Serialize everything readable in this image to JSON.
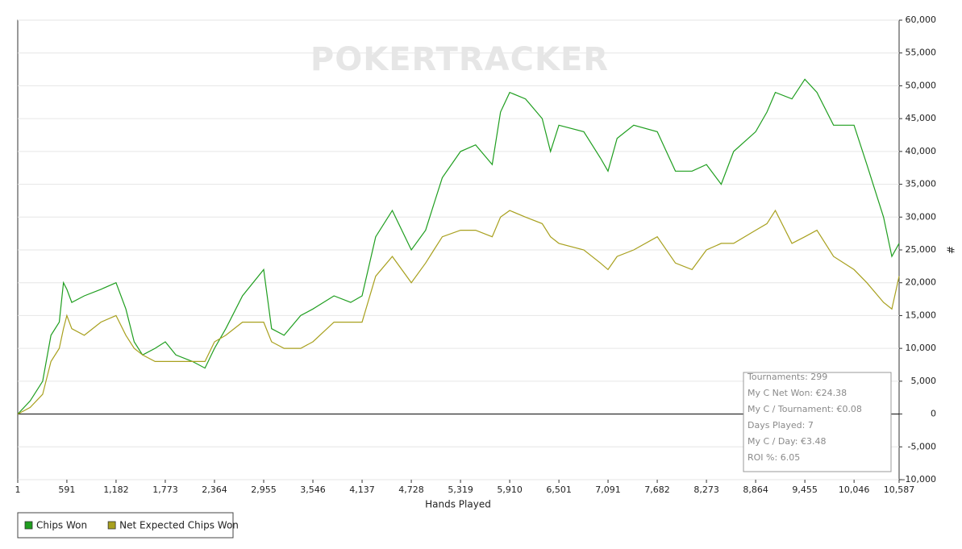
{
  "chart_data": {
    "type": "line",
    "watermark": "POKERTRACKER",
    "x_label": "Hands Played",
    "y_label": "#",
    "x": [
      1,
      150,
      300,
      400,
      500,
      550,
      591,
      650,
      800,
      1000,
      1182,
      1300,
      1400,
      1500,
      1650,
      1773,
      1900,
      2100,
      2250,
      2364,
      2500,
      2700,
      2955,
      3050,
      3200,
      3400,
      3546,
      3800,
      4000,
      4137,
      4300,
      4500,
      4728,
      4900,
      5000,
      5100,
      5319,
      5500,
      5700,
      5800,
      5910,
      6100,
      6300,
      6400,
      6501,
      6800,
      7000,
      7091,
      7200,
      7400,
      7682,
      7900,
      8100,
      8273,
      8450,
      8600,
      8864,
      9000,
      9100,
      9300,
      9455,
      9600,
      9800,
      10046,
      10200,
      10400,
      10500,
      10587
    ],
    "series": [
      {
        "name": "Chips Won",
        "color": "#1f9e1f",
        "values": [
          0,
          2000,
          5000,
          12000,
          14000,
          20000,
          19000,
          17000,
          18000,
          19000,
          20000,
          16000,
          11000,
          9000,
          10000,
          11000,
          9000,
          8000,
          7000,
          10000,
          13000,
          18000,
          22000,
          13000,
          12000,
          15000,
          16000,
          18000,
          17000,
          18000,
          27000,
          31000,
          25000,
          28000,
          32000,
          36000,
          40000,
          41000,
          38000,
          46000,
          49000,
          48000,
          45000,
          40000,
          44000,
          43000,
          39000,
          37000,
          42000,
          44000,
          43000,
          37000,
          37000,
          38000,
          35000,
          40000,
          43000,
          46000,
          49000,
          48000,
          51000,
          49000,
          44000,
          44000,
          38000,
          30000,
          24000,
          26000
        ]
      },
      {
        "name": "Net Expected Chips Won",
        "color": "#a8a01e",
        "values": [
          0,
          1000,
          3000,
          8000,
          10000,
          13000,
          15000,
          13000,
          12000,
          14000,
          15000,
          12000,
          10000,
          9000,
          8000,
          8000,
          8000,
          8000,
          8000,
          11000,
          12000,
          14000,
          14000,
          11000,
          10000,
          10000,
          11000,
          14000,
          14000,
          14000,
          21000,
          24000,
          20000,
          23000,
          25000,
          27000,
          28000,
          28000,
          27000,
          30000,
          31000,
          30000,
          29000,
          27000,
          26000,
          25000,
          23000,
          22000,
          24000,
          25000,
          27000,
          23000,
          22000,
          25000,
          26000,
          26000,
          28000,
          29000,
          31000,
          26000,
          27000,
          28000,
          24000,
          22000,
          20000,
          17000,
          16000,
          21000
        ]
      }
    ],
    "xlim": [
      1,
      10587
    ],
    "xticks": [
      1,
      {
        "value": 591,
        "label": "591"
      },
      {
        "value": 1182,
        "label": "1,182"
      },
      {
        "value": 1773,
        "label": "1,773"
      },
      {
        "value": 2364,
        "label": "2,364"
      },
      {
        "value": 2955,
        "label": "2,955"
      },
      {
        "value": 3546,
        "label": "3,546"
      },
      {
        "value": 4137,
        "label": "4,137"
      },
      {
        "value": 4728,
        "label": "4,728"
      },
      {
        "value": 5319,
        "label": "5,319"
      },
      {
        "value": 5910,
        "label": "5,910"
      },
      {
        "value": 6501,
        "label": "6,501"
      },
      {
        "value": 7091,
        "label": "7,091"
      },
      {
        "value": 7682,
        "label": "7,682"
      },
      {
        "value": 8273,
        "label": "8,273"
      },
      {
        "value": 8864,
        "label": "8,864"
      },
      {
        "value": 9455,
        "label": "9,455"
      },
      {
        "value": 10046,
        "label": "10,046"
      },
      {
        "value": 10587,
        "label": "10,587"
      }
    ],
    "ylim": [
      -10000,
      60000
    ],
    "yticks": [
      {
        "value": -10000,
        "label": "-10,000"
      },
      {
        "value": -5000,
        "label": "-5,000"
      },
      0,
      {
        "value": 5000,
        "label": "5,000"
      },
      {
        "value": 10000,
        "label": "10,000"
      },
      {
        "value": 15000,
        "label": "15,000"
      },
      {
        "value": 20000,
        "label": "20,000"
      },
      {
        "value": 25000,
        "label": "25,000"
      },
      {
        "value": 30000,
        "label": "30,000"
      },
      {
        "value": 35000,
        "label": "35,000"
      },
      {
        "value": 40000,
        "label": "40,000"
      },
      {
        "value": 45000,
        "label": "45,000"
      },
      {
        "value": 50000,
        "label": "50,000"
      },
      {
        "value": 55000,
        "label": "55,000"
      },
      {
        "value": 60000,
        "label": "60,000"
      }
    ],
    "grid": true,
    "stats": [
      "Tournaments: 299",
      "My C Net Won: €24.38",
      "My C / Tournament: €0.08",
      "Days Played: 7",
      "My C / Day: €3.48",
      "ROI %: 6.05"
    ]
  }
}
